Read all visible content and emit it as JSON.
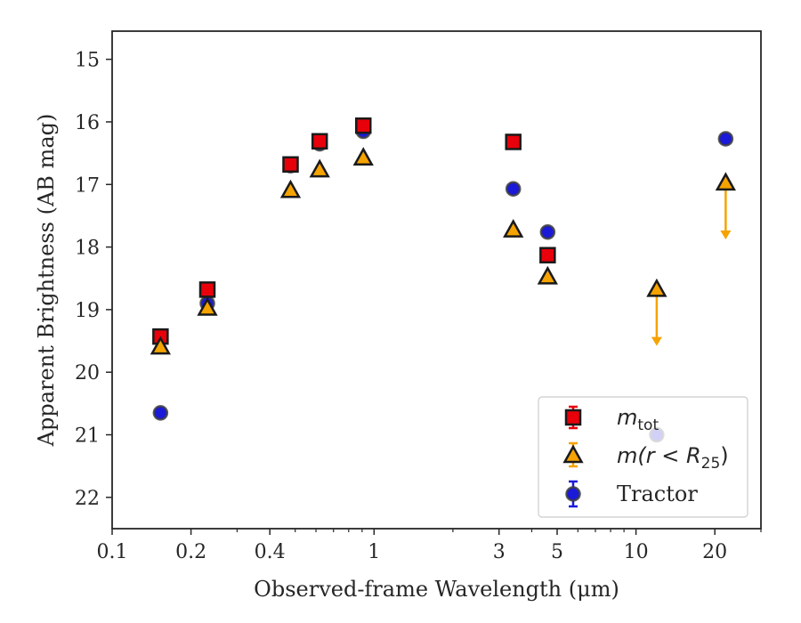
{
  "chart_data": {
    "type": "scatter",
    "xlabel": "Observed-frame Wavelength (μm)",
    "ylabel": "Apparent Brightness (AB mag)",
    "xscale": "log",
    "xlim": [
      0.1,
      30
    ],
    "ylim": [
      22.5,
      14.55
    ],
    "y_inverted": true,
    "xticks": [
      {
        "value": 0.1,
        "label": "0.1"
      },
      {
        "value": 0.2,
        "label": "0.2"
      },
      {
        "value": 0.4,
        "label": "0.4"
      },
      {
        "value": 1,
        "label": "1"
      },
      {
        "value": 3,
        "label": "3"
      },
      {
        "value": 5,
        "label": "5"
      },
      {
        "value": 10,
        "label": "10"
      },
      {
        "value": 20,
        "label": "20"
      }
    ],
    "xminor": [
      0.3,
      0.5,
      0.6,
      0.7,
      0.8,
      0.9,
      2,
      4,
      6,
      7,
      8,
      9,
      30
    ],
    "yticks": [
      15,
      16,
      17,
      18,
      19,
      20,
      21,
      22
    ],
    "legend_position": "lower-right",
    "series": [
      {
        "name": "m_tot",
        "legend_main": "m",
        "legend_sub": "tot",
        "marker": "square",
        "color": "#e8000b",
        "edge": "#1a1a1a",
        "x": [
          0.153,
          0.231,
          0.48,
          0.62,
          0.91,
          3.4,
          4.6
        ],
        "y": [
          19.43,
          18.68,
          16.68,
          16.31,
          16.06,
          16.32,
          18.13
        ]
      },
      {
        "name": "m(r < R_25)",
        "legend_main": "m(r < R",
        "legend_sub": "25",
        "legend_tail": ")",
        "marker": "triangle",
        "color": "#f5a300",
        "edge": "#1a1a1a",
        "x": [
          0.153,
          0.231,
          0.48,
          0.62,
          0.91,
          3.4,
          4.6,
          12.0,
          22.0
        ],
        "y": [
          19.6,
          18.98,
          17.1,
          16.77,
          16.58,
          17.73,
          18.48,
          18.68,
          16.98
        ],
        "upper_limits": [
          {
            "x": 12.0,
            "from": 18.68,
            "to": 19.55
          },
          {
            "x": 22.0,
            "from": 16.98,
            "to": 17.85
          }
        ]
      },
      {
        "name": "Tractor",
        "legend_main": "Tractor",
        "marker": "circle",
        "color": "#1a1ad8",
        "edge": "#404040",
        "x": [
          0.153,
          0.231,
          0.48,
          0.62,
          0.91,
          3.4,
          4.6,
          12.0,
          22.0
        ],
        "y": [
          20.65,
          18.9,
          16.7,
          16.35,
          16.15,
          17.07,
          17.76,
          21.0,
          16.27
        ],
        "yerr": [
          0.06,
          0.06,
          0.04,
          0.04,
          0.04,
          0.07,
          0.08,
          0.05,
          0.09
        ]
      }
    ]
  }
}
